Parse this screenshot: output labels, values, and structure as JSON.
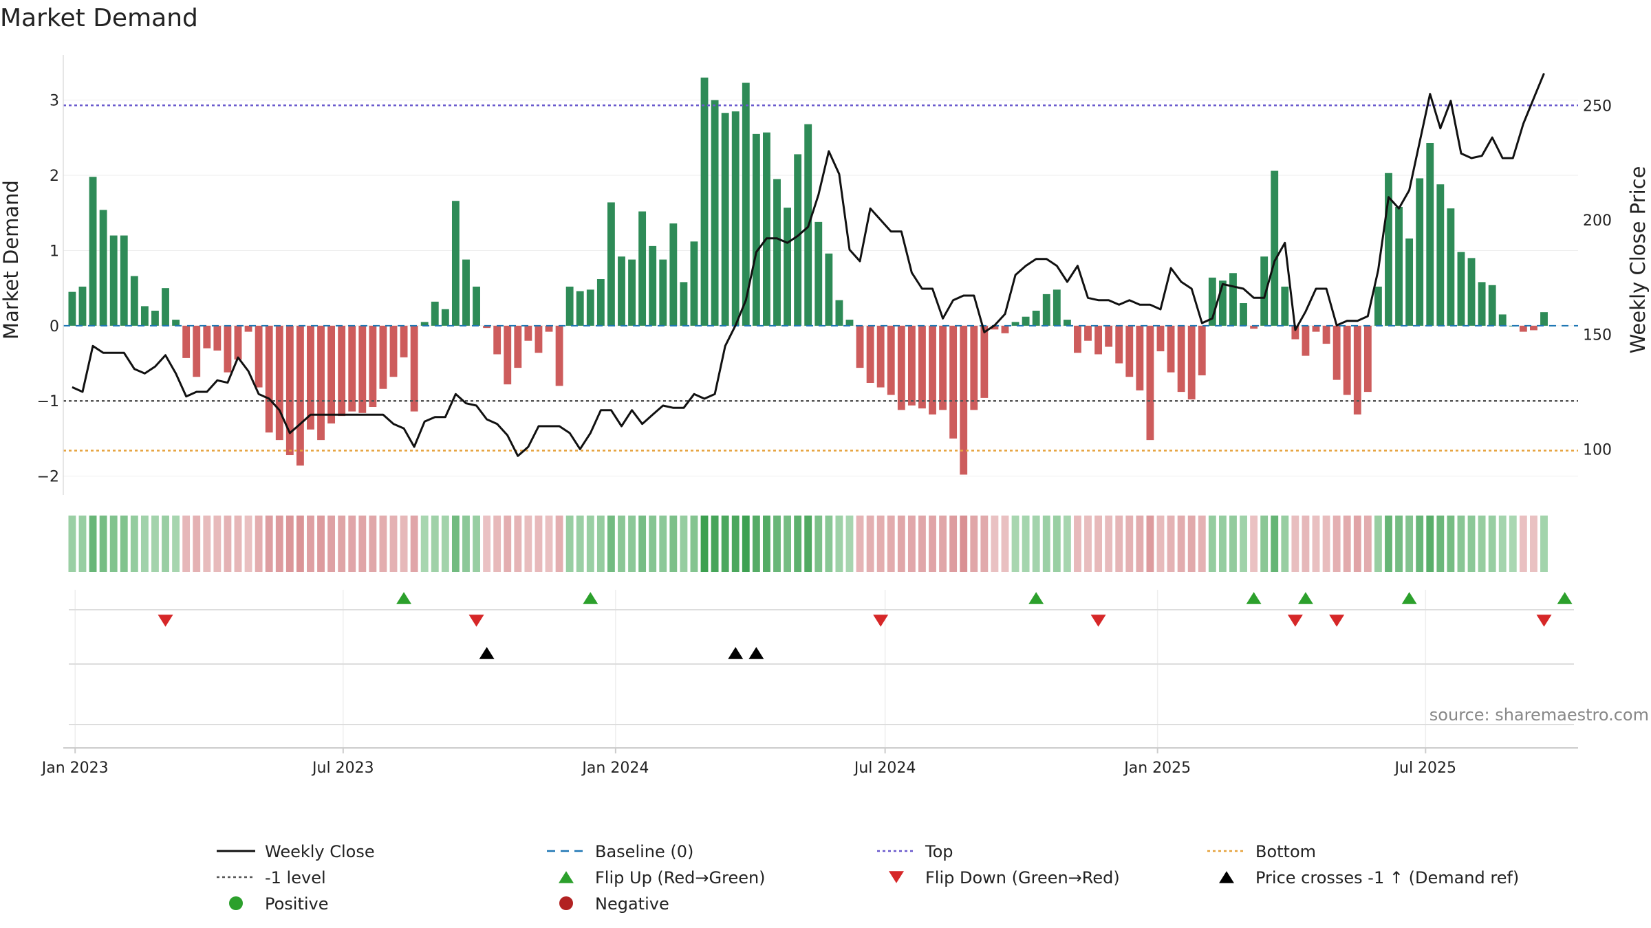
{
  "chart_data": {
    "type": "bar",
    "title": "Market Demand",
    "ylabel": "Market Demand",
    "y2label": "Weekly Close Price",
    "ylim": [
      -2.25,
      3.6
    ],
    "y2lim": [
      80,
      272
    ],
    "yticks": [
      -2,
      -1,
      0,
      1,
      2,
      3
    ],
    "yticklabels": [
      "−2",
      "−1",
      "0",
      "1",
      "2",
      "3"
    ],
    "y2ticks": [
      100,
      150,
      200,
      250
    ],
    "y2ticklabels": [
      "100",
      "150",
      "200",
      "250"
    ],
    "x_start": "2022-12-30",
    "week_step_days": 7,
    "xticks": [
      {
        "date": "2023-01-01",
        "label": "Jan 2023"
      },
      {
        "date": "2023-07-01",
        "label": "Jul 2023"
      },
      {
        "date": "2024-01-01",
        "label": "Jan 2024"
      },
      {
        "date": "2024-07-01",
        "label": "Jul 2024"
      },
      {
        "date": "2025-01-01",
        "label": "Jan 2025"
      },
      {
        "date": "2025-07-01",
        "label": "Jul 2025"
      }
    ],
    "top_level": 2.93,
    "bottom_level": -1.66,
    "minus1_level": -1,
    "demand": [
      0.45,
      0.52,
      1.98,
      1.54,
      1.2,
      1.2,
      0.66,
      0.26,
      0.2,
      0.5,
      0.08,
      -0.43,
      -0.68,
      -0.3,
      -0.33,
      -0.62,
      -0.45,
      -0.08,
      -0.82,
      -1.42,
      -1.52,
      -1.72,
      -1.86,
      -1.38,
      -1.52,
      -1.3,
      -1.2,
      -1.14,
      -1.16,
      -1.08,
      -0.84,
      -0.68,
      -0.42,
      -1.14,
      0.05,
      0.32,
      0.22,
      1.66,
      0.88,
      0.52,
      -0.03,
      -0.38,
      -0.78,
      -0.56,
      -0.2,
      -0.36,
      -0.08,
      -0.8,
      0.52,
      0.46,
      0.48,
      0.62,
      1.64,
      0.92,
      0.88,
      1.52,
      1.06,
      0.88,
      1.36,
      0.58,
      1.12,
      3.3,
      3.0,
      2.83,
      2.85,
      3.23,
      2.55,
      2.57,
      1.95,
      1.57,
      2.28,
      2.68,
      1.38,
      0.96,
      0.34,
      0.08,
      -0.56,
      -0.76,
      -0.82,
      -0.92,
      -1.12,
      -1.06,
      -1.1,
      -1.18,
      -1.12,
      -1.5,
      -1.98,
      -1.12,
      -0.96,
      -0.05,
      -0.1,
      0.05,
      0.12,
      0.2,
      0.42,
      0.48,
      0.08,
      -0.36,
      -0.2,
      -0.38,
      -0.28,
      -0.5,
      -0.68,
      -0.86,
      -1.52,
      -0.34,
      -0.62,
      -0.88,
      -0.98,
      -0.66,
      0.64,
      0.6,
      0.7,
      0.3,
      -0.04,
      0.92,
      2.06,
      0.52,
      -0.18,
      -0.4,
      -0.08,
      -0.24,
      -0.72,
      -0.92,
      -1.18,
      -0.88,
      0.52,
      2.03,
      1.58,
      1.16,
      1.96,
      2.43,
      1.88,
      1.56,
      0.98,
      0.9,
      0.58,
      0.54,
      0.15,
      0.0,
      -0.08,
      -0.06,
      0.18
    ],
    "close": [
      127,
      125,
      145,
      142,
      142,
      142,
      135,
      133,
      136,
      141,
      133,
      123,
      125,
      125,
      130,
      129,
      140,
      134,
      124,
      122,
      117,
      107,
      111,
      115,
      115,
      115,
      115,
      115,
      115,
      115,
      115,
      111,
      109,
      101,
      112,
      114,
      114,
      124,
      120,
      119,
      113,
      111,
      106,
      97,
      101,
      110,
      110,
      110,
      107,
      100,
      107,
      117,
      117,
      110,
      117,
      111,
      115,
      119,
      118,
      118,
      124,
      122,
      124,
      145,
      154,
      165,
      186,
      192,
      192,
      190,
      193,
      197,
      211,
      230,
      220,
      187,
      182,
      205,
      200,
      195,
      195,
      177,
      170,
      170,
      157,
      165,
      167,
      167,
      151,
      154,
      159,
      176,
      180,
      183,
      183,
      180,
      173,
      180,
      166,
      165,
      165,
      163,
      165,
      163,
      163,
      161,
      179,
      173,
      170,
      155,
      157,
      172,
      171,
      170,
      166,
      166,
      182,
      190,
      152,
      160,
      170,
      170,
      154,
      156,
      156,
      158,
      178,
      210,
      205,
      213,
      234,
      255,
      240,
      252,
      229,
      227,
      228,
      236,
      227,
      227,
      242,
      253,
      264
    ],
    "flip_up": [
      "2023-08-11",
      "2023-12-15",
      "2024-10-11",
      "2025-03-07",
      "2025-04-11",
      "2025-06-20",
      "2025-10-03"
    ],
    "flip_down": [
      "2023-03-03",
      "2023-09-29",
      "2024-06-28",
      "2024-11-22",
      "2025-04-04",
      "2025-05-02",
      "2025-09-19"
    ],
    "price_cross": [
      "2023-10-06",
      "2024-03-22",
      "2024-04-05"
    ],
    "legend": [
      {
        "label": "Weekly Close",
        "kind": "solid",
        "color": "#111111"
      },
      {
        "label": "Baseline (0)",
        "kind": "dash",
        "color": "#1f77b4"
      },
      {
        "label": "Top",
        "kind": "dot",
        "color": "#6a5acd"
      },
      {
        "label": "Bottom",
        "kind": "dot",
        "color": "#e6a23c"
      },
      {
        "label": "-1 level",
        "kind": "dot",
        "color": "#555555"
      },
      {
        "label": "Flip Up (Red→Green)",
        "kind": "tri-up",
        "color": "#2ca02c"
      },
      {
        "label": "Flip Down (Green→Red)",
        "kind": "tri-down",
        "color": "#d62728"
      },
      {
        "label": "Price crosses -1 ↑ (Demand ref)",
        "kind": "tri-up",
        "color": "#000000"
      },
      {
        "label": "Positive",
        "kind": "circle",
        "color": "#2ca02c"
      },
      {
        "label": "Negative",
        "kind": "circle",
        "color": "#b22222"
      }
    ],
    "source": "source: sharemaestro.com"
  },
  "colors": {
    "positive_bar": "#2e8b57",
    "negative_bar": "#cd5c5c",
    "top_line": "#6a5acd",
    "bottom_line": "#e6a23c",
    "minus1_line": "#555555",
    "baseline": "#1f77b4",
    "price_line": "#111111",
    "flip_up": "#2ca02c",
    "flip_down": "#d62728",
    "cross": "#000000"
  }
}
